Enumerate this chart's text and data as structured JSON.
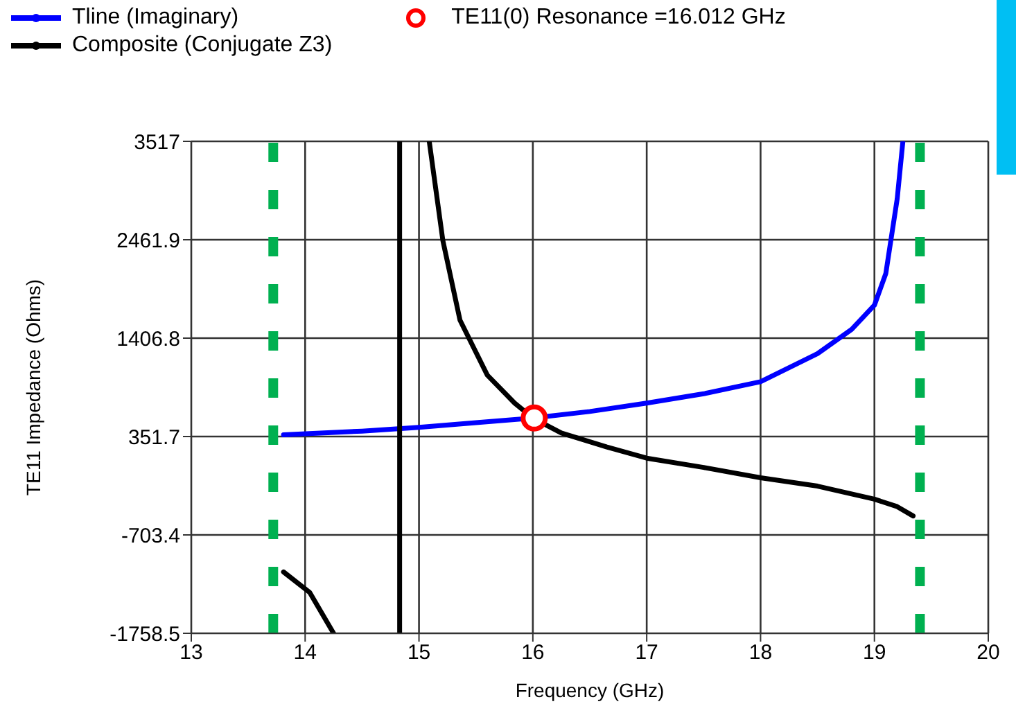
{
  "chart_data": {
    "type": "line",
    "xlabel": "Frequency (GHz)",
    "ylabel": "TE11 Impedance (Ohms)",
    "xlim": [
      13,
      20
    ],
    "xticks": [
      13,
      14,
      15,
      16,
      17,
      18,
      19,
      20
    ],
    "ylim": [
      -1758.5,
      3517
    ],
    "yticks": [
      -1758.5,
      -703.4,
      351.7,
      1406.8,
      2461.9,
      3517
    ],
    "grid": true,
    "legend": "top left",
    "marker": "none",
    "line_style": "solid",
    "series": [
      {
        "name": "Tline (Imaginary)",
        "color": "#0000ff",
        "x": [
          13.81,
          14.5,
          15,
          15.5,
          16,
          16.5,
          17,
          17.5,
          18,
          18.5,
          18.8,
          19,
          19.1,
          19.2,
          19.25
        ],
        "values": [
          370,
          410,
          450,
          500,
          550,
          620,
          710,
          810,
          940,
          1240,
          1500,
          1760,
          2100,
          2900,
          3517
        ]
      },
      {
        "name": "Composite (Conjugate Z3)",
        "color": "#000000",
        "x": [
          13.81,
          14.04,
          14.25,
          14.5,
          14.83,
          14.83,
          15,
          15.09,
          15.21,
          15.36,
          15.6,
          15.84,
          16,
          16.25,
          16.65,
          17,
          17.5,
          18,
          18.5,
          19,
          19.2,
          19.34
        ],
        "values": [
          -1100,
          -1320,
          -1758.5,
          null,
          -1758.5,
          3517,
          null,
          3517,
          2450,
          1600,
          1010,
          710,
          550,
          390,
          240,
          120,
          20,
          -90,
          -180,
          -320,
          -400,
          -500
        ]
      },
      {
        "name": "TE11(0) Resonance =16.012 GHz",
        "type": "scatter",
        "marker": "circle",
        "color": "#ff0000",
        "x": [
          16.012
        ],
        "values": [
          550
        ]
      }
    ],
    "ref_lines": [
      {
        "axis": "x",
        "value": 13.72,
        "color": "#00b050",
        "line_style": "dashed"
      },
      {
        "axis": "x",
        "value": 19.4,
        "color": "#00b050",
        "line_style": "dashed"
      }
    ]
  }
}
